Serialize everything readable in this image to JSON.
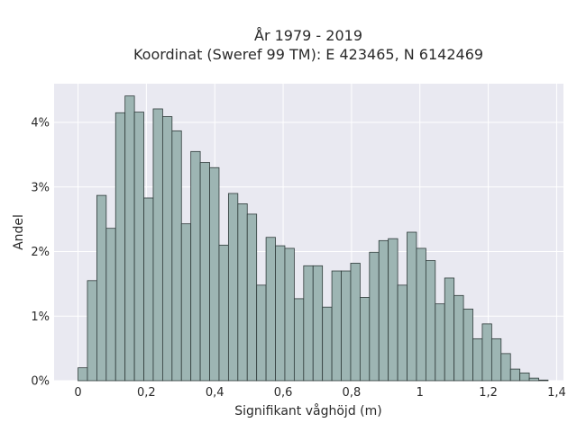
{
  "chart_data": {
    "type": "bar",
    "title_line1": "År 1979 - 2019",
    "title_line2": "Koordinat (Sweref 99 TM): E 423465, N 6142469",
    "xlabel": "Signifikant våghöjd (m)",
    "ylabel": "Andel",
    "xlim": [
      -0.07,
      1.42
    ],
    "ylim": [
      0,
      4.6
    ],
    "x_ticks": [
      0,
      0.2,
      0.4,
      0.6,
      0.8,
      1.0,
      1.2,
      1.4
    ],
    "x_tick_labels": [
      "0",
      "0,2",
      "0,4",
      "0,6",
      "0,8",
      "1",
      "1,2",
      "1,4"
    ],
    "y_ticks": [
      0,
      1,
      2,
      3,
      4
    ],
    "y_tick_labels": [
      "0%",
      "1%",
      "2%",
      "3%",
      "4%"
    ],
    "bin_width": 0.0275,
    "bin_start": 0.0,
    "values": [
      0.2,
      1.55,
      2.87,
      2.36,
      4.15,
      4.41,
      4.16,
      2.83,
      4.21,
      4.09,
      3.87,
      2.43,
      3.55,
      3.38,
      3.3,
      2.1,
      2.9,
      2.74,
      2.58,
      1.48,
      2.22,
      2.09,
      2.05,
      1.27,
      1.78,
      1.78,
      1.14,
      1.7,
      1.7,
      1.82,
      1.29,
      1.99,
      2.17,
      2.2,
      1.48,
      2.3,
      2.05,
      1.86,
      1.19,
      1.59,
      1.32,
      1.11,
      0.65,
      0.88,
      0.65,
      0.42,
      0.18,
      0.12,
      0.04,
      0.01
    ],
    "grid": true,
    "colors": {
      "bar_fill": "#9db5b3",
      "bar_edge": "#2f3b3a",
      "plot_bg": "#e9e9f1",
      "grid": "#ffffff"
    }
  }
}
